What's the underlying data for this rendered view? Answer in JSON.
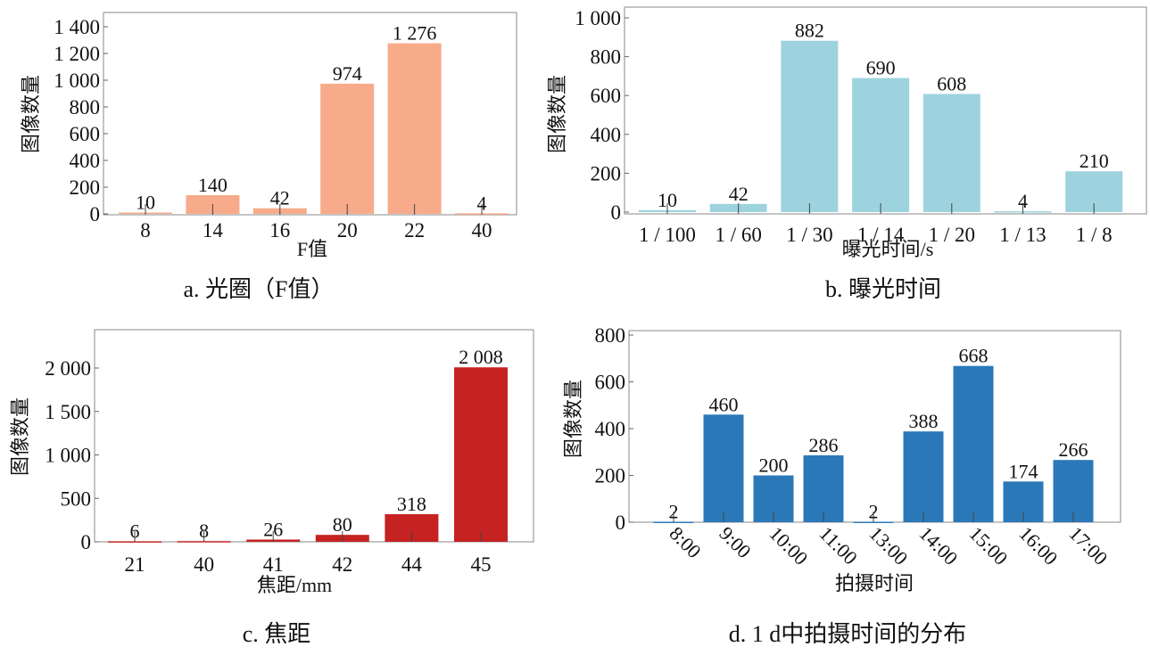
{
  "chart_data": [
    {
      "type": "bar",
      "caption": "a. 光圈（F值）",
      "xlabel": "F值",
      "ylabel": "图像数量",
      "categories": [
        "8",
        "14",
        "16",
        "20",
        "22",
        "40"
      ],
      "values": [
        10,
        140,
        42,
        974,
        1276,
        4
      ],
      "data_labels": [
        "10",
        "140",
        "42",
        "974",
        "1 276",
        "4"
      ],
      "yticks": [
        0,
        200,
        400,
        600,
        800,
        1000,
        1200,
        1400
      ],
      "ytick_labels": [
        "0",
        "200",
        "400",
        "600",
        "800",
        "1 000",
        "1 200",
        "1 400"
      ],
      "ylim": [
        0,
        1400
      ],
      "color": "#F7AB8B"
    },
    {
      "type": "bar",
      "caption": "b. 曝光时间",
      "xlabel": "曝光时间/s",
      "ylabel": "图像数量",
      "categories": [
        "1 / 100",
        "1 / 60",
        "1 / 30",
        "1 / 14",
        "1 / 20",
        "1 / 13",
        "1 / 8"
      ],
      "values": [
        10,
        42,
        882,
        690,
        608,
        4,
        210
      ],
      "data_labels": [
        "10",
        "42",
        "882",
        "690",
        "608",
        "4",
        "210"
      ],
      "yticks": [
        0,
        200,
        400,
        600,
        800,
        1000
      ],
      "ytick_labels": [
        "0",
        "200",
        "400",
        "600",
        "800",
        "1 000"
      ],
      "ylim": [
        0,
        1000
      ],
      "color": "#9DD3DF"
    },
    {
      "type": "bar",
      "caption": "c. 焦距",
      "xlabel": "焦距/mm",
      "ylabel": "图像数量",
      "categories": [
        "21",
        "40",
        "41",
        "42",
        "44",
        "45"
      ],
      "values": [
        6,
        8,
        26,
        80,
        318,
        2008
      ],
      "data_labels": [
        "6",
        "8",
        "26",
        "80",
        "318",
        "2 008"
      ],
      "yticks": [
        0,
        500,
        1000,
        1500,
        2000
      ],
      "ytick_labels": [
        "0",
        "500",
        "1 000",
        "1 500",
        "2 000"
      ],
      "ylim": [
        0,
        2000
      ],
      "color": "#C62222"
    },
    {
      "type": "bar",
      "caption": "d. 1 d中拍摄时间的分布",
      "xlabel": "拍摄时间",
      "ylabel": "图像数量",
      "categories": [
        "8:00",
        "9:00",
        "10:00",
        "11:00",
        "13:00",
        "14:00",
        "15:00",
        "16:00",
        "17:00"
      ],
      "values": [
        2,
        460,
        200,
        286,
        2,
        388,
        668,
        174,
        266
      ],
      "data_labels": [
        "2",
        "460",
        "200",
        "286",
        "2",
        "388",
        "668",
        "174",
        "266"
      ],
      "yticks": [
        0,
        200,
        400,
        600,
        800
      ],
      "ytick_labels": [
        "0",
        "200",
        "400",
        "600",
        "800"
      ],
      "ylim": [
        0,
        800
      ],
      "color": "#2B78B8"
    }
  ]
}
